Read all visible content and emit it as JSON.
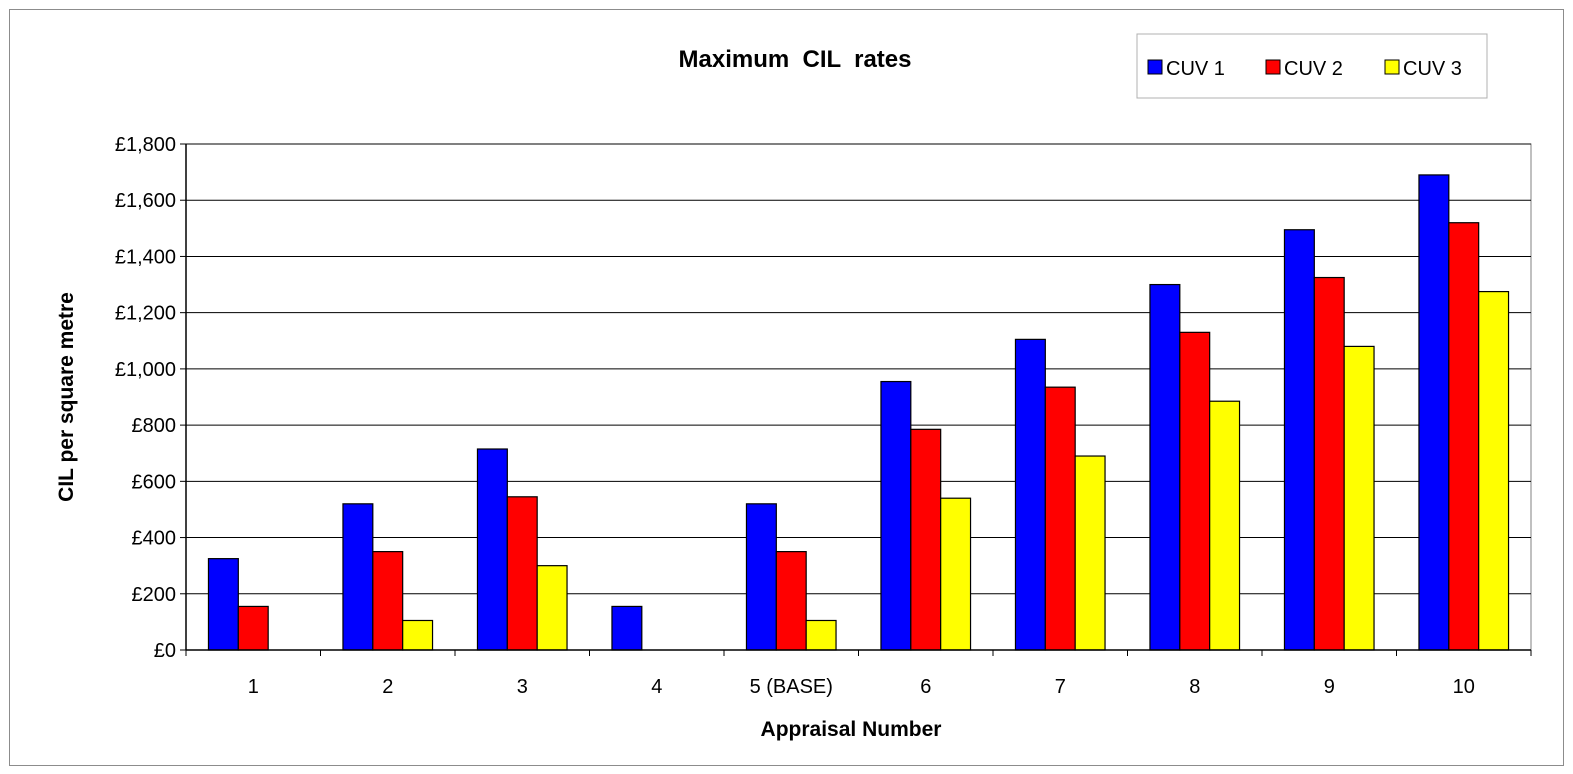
{
  "chart_data": {
    "type": "bar",
    "title": "Maximum  CIL  rates",
    "xlabel": "Appraisal Number",
    "ylabel": "CIL per square metre",
    "categories": [
      "1",
      "2",
      "3",
      "4",
      "5 (BASE)",
      "6",
      "7",
      "8",
      "9",
      "10"
    ],
    "series": [
      {
        "name": "CUV 1",
        "color": "#0000ff",
        "values": [
          325,
          520,
          715,
          155,
          520,
          955,
          1105,
          1300,
          1495,
          1690
        ]
      },
      {
        "name": "CUV 2",
        "color": "#ff0000",
        "values": [
          155,
          350,
          545,
          0,
          350,
          785,
          935,
          1130,
          1325,
          1520
        ]
      },
      {
        "name": "CUV 3",
        "color": "#ffff00",
        "values": [
          0,
          105,
          300,
          0,
          105,
          540,
          690,
          885,
          1080,
          1275
        ]
      }
    ],
    "ylim": [
      0,
      1800
    ],
    "yticks": [
      {
        "value": 0,
        "label": "£0"
      },
      {
        "value": 200,
        "label": "£200"
      },
      {
        "value": 400,
        "label": "£400"
      },
      {
        "value": 600,
        "label": "£600"
      },
      {
        "value": 800,
        "label": "£800"
      },
      {
        "value": 1000,
        "label": "£1,000"
      },
      {
        "value": 1200,
        "label": "£1,200"
      },
      {
        "value": 1400,
        "label": "£1,400"
      },
      {
        "value": 1600,
        "label": "£1,600"
      },
      {
        "value": 1800,
        "label": "£1,800"
      }
    ],
    "grid": true,
    "legend_position": "top-right"
  }
}
